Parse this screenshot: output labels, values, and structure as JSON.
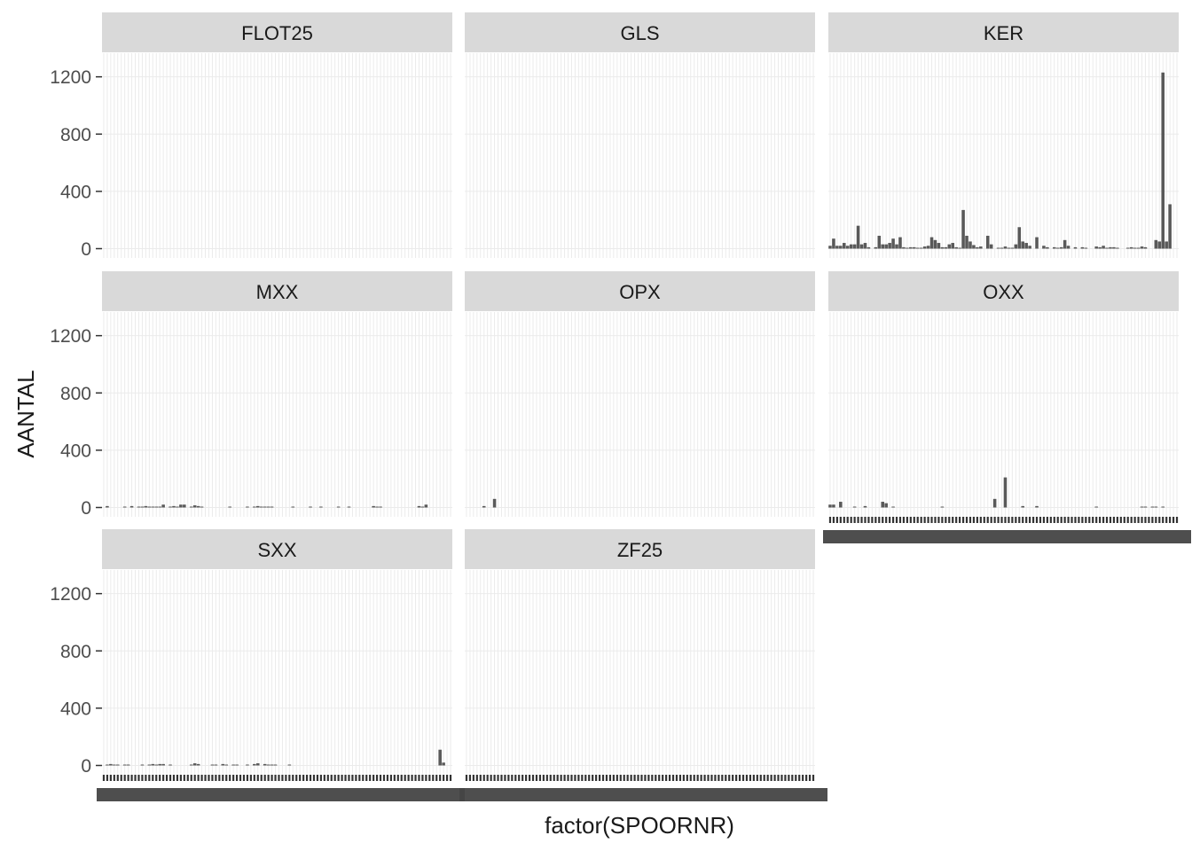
{
  "chart_data": {
    "type": "bar",
    "facet_by": "category",
    "xlabel": "factor(SPOORNR)",
    "ylabel": "AANTAL",
    "ylim": [
      0,
      1300
    ],
    "yticks": [
      0,
      400,
      800,
      1200
    ],
    "n_categories": 100,
    "grid": true,
    "colors": {
      "bar": "#595959",
      "strip": "#d9d9d9",
      "grid": "#ebebeb",
      "text": "#4d4d4d",
      "title": "#1a1a1a"
    },
    "panels": [
      {
        "label": "FLOT25",
        "values": [
          0,
          0,
          0,
          0,
          0,
          0,
          0,
          0,
          0,
          0,
          0,
          0,
          0,
          0,
          0,
          0,
          0,
          0,
          0,
          0,
          0,
          0,
          0,
          0,
          0,
          0,
          0,
          0,
          0,
          0,
          0,
          0,
          0,
          0,
          0,
          0,
          0,
          0,
          0,
          0,
          0,
          0,
          0,
          0,
          0,
          0,
          0,
          0,
          0,
          0,
          0,
          0,
          0,
          0,
          0,
          0,
          0,
          0,
          0,
          0,
          0,
          0,
          0,
          0,
          0,
          0,
          0,
          0,
          0,
          0,
          0,
          0,
          0,
          0,
          0,
          0,
          0,
          0,
          0,
          0,
          0,
          0,
          0,
          0,
          0,
          0,
          0,
          0,
          0,
          0,
          0,
          0,
          0,
          0,
          0,
          0,
          0,
          0,
          0,
          0
        ]
      },
      {
        "label": "GLS",
        "values": [
          0,
          0,
          0,
          0,
          0,
          0,
          0,
          0,
          0,
          0,
          0,
          0,
          0,
          0,
          0,
          0,
          0,
          0,
          0,
          0,
          0,
          0,
          0,
          0,
          0,
          0,
          0,
          0,
          0,
          0,
          0,
          0,
          0,
          0,
          0,
          0,
          0,
          0,
          0,
          0,
          0,
          0,
          0,
          0,
          0,
          0,
          0,
          0,
          0,
          0,
          0,
          0,
          0,
          0,
          0,
          0,
          0,
          0,
          0,
          0,
          0,
          0,
          0,
          0,
          0,
          0,
          0,
          0,
          0,
          0,
          0,
          0,
          0,
          0,
          0,
          0,
          0,
          0,
          0,
          0,
          0,
          0,
          0,
          0,
          0,
          0,
          0,
          0,
          0,
          0,
          0,
          0,
          0,
          0,
          0,
          0,
          0,
          0,
          0,
          0
        ]
      },
      {
        "label": "KER",
        "values": [
          20,
          70,
          20,
          20,
          40,
          20,
          30,
          30,
          160,
          30,
          40,
          10,
          0,
          10,
          90,
          30,
          30,
          40,
          70,
          30,
          80,
          10,
          5,
          10,
          10,
          5,
          5,
          15,
          20,
          80,
          60,
          40,
          10,
          10,
          30,
          40,
          10,
          5,
          270,
          90,
          50,
          25,
          10,
          15,
          0,
          90,
          30,
          0,
          5,
          5,
          15,
          5,
          5,
          30,
          150,
          50,
          40,
          20,
          0,
          80,
          0,
          20,
          10,
          0,
          10,
          5,
          10,
          60,
          20,
          0,
          10,
          0,
          10,
          5,
          0,
          0,
          15,
          10,
          20,
          5,
          10,
          10,
          5,
          0,
          0,
          5,
          10,
          5,
          5,
          15,
          10,
          0,
          0,
          60,
          50,
          1230,
          50,
          310,
          0,
          0
        ]
      },
      {
        "label": "MXX",
        "values": [
          0,
          10,
          0,
          0,
          0,
          0,
          5,
          0,
          10,
          0,
          5,
          5,
          10,
          5,
          5,
          5,
          5,
          20,
          0,
          5,
          10,
          5,
          20,
          20,
          0,
          5,
          15,
          10,
          5,
          0,
          0,
          0,
          0,
          0,
          0,
          0,
          5,
          0,
          0,
          0,
          0,
          5,
          0,
          5,
          10,
          5,
          5,
          5,
          5,
          0,
          0,
          0,
          0,
          0,
          5,
          0,
          0,
          0,
          0,
          5,
          0,
          0,
          5,
          0,
          0,
          0,
          0,
          5,
          0,
          0,
          5,
          0,
          0,
          0,
          0,
          0,
          0,
          10,
          5,
          5,
          0,
          0,
          0,
          0,
          0,
          0,
          0,
          0,
          0,
          0,
          10,
          5,
          20,
          0,
          0,
          0,
          0,
          0,
          0,
          0
        ]
      },
      {
        "label": "OPX",
        "values": [
          0,
          0,
          0,
          0,
          0,
          10,
          0,
          0,
          60,
          0,
          0,
          0,
          0,
          0,
          0,
          0,
          0,
          0,
          0,
          0,
          0,
          0,
          0,
          0,
          0,
          0,
          0,
          0,
          0,
          0,
          0,
          0,
          0,
          0,
          0,
          0,
          0,
          0,
          0,
          0,
          0,
          0,
          0,
          0,
          0,
          0,
          0,
          0,
          0,
          0,
          0,
          0,
          0,
          0,
          0,
          0,
          0,
          0,
          0,
          0,
          0,
          0,
          0,
          0,
          0,
          0,
          0,
          0,
          0,
          0,
          0,
          0,
          0,
          0,
          0,
          0,
          0,
          0,
          0,
          0,
          0,
          0,
          0,
          0,
          0,
          0,
          0,
          0,
          0,
          0,
          0,
          0,
          0,
          0,
          0,
          0,
          0,
          0,
          0,
          0
        ]
      },
      {
        "label": "OXX",
        "values": [
          20,
          20,
          0,
          40,
          0,
          0,
          0,
          5,
          0,
          0,
          10,
          0,
          0,
          0,
          0,
          40,
          30,
          0,
          5,
          0,
          0,
          0,
          0,
          0,
          0,
          0,
          0,
          0,
          0,
          0,
          0,
          0,
          5,
          0,
          0,
          0,
          0,
          0,
          0,
          0,
          0,
          0,
          0,
          0,
          0,
          0,
          0,
          60,
          0,
          0,
          210,
          0,
          0,
          0,
          0,
          10,
          0,
          0,
          0,
          10,
          0,
          0,
          0,
          0,
          0,
          0,
          0,
          0,
          0,
          0,
          0,
          0,
          0,
          0,
          0,
          0,
          5,
          0,
          0,
          0,
          0,
          0,
          0,
          0,
          0,
          0,
          0,
          0,
          0,
          5,
          5,
          0,
          5,
          5,
          0,
          5,
          0,
          0,
          0,
          0
        ]
      },
      {
        "label": "SXX",
        "values": [
          0,
          5,
          10,
          5,
          5,
          0,
          5,
          5,
          0,
          0,
          0,
          5,
          0,
          5,
          10,
          5,
          10,
          10,
          0,
          5,
          0,
          0,
          0,
          0,
          0,
          5,
          15,
          10,
          0,
          0,
          0,
          5,
          5,
          0,
          10,
          5,
          0,
          5,
          5,
          0,
          0,
          5,
          0,
          10,
          15,
          0,
          10,
          5,
          5,
          5,
          0,
          0,
          0,
          5,
          0,
          0,
          0,
          0,
          0,
          0,
          0,
          0,
          0,
          0,
          0,
          0,
          0,
          0,
          0,
          0,
          0,
          0,
          0,
          0,
          0,
          0,
          0,
          0,
          0,
          0,
          0,
          0,
          0,
          0,
          0,
          0,
          0,
          0,
          0,
          0,
          0,
          0,
          0,
          0,
          0,
          0,
          110,
          20,
          0,
          0
        ]
      },
      {
        "label": "ZF25",
        "values": [
          0,
          0,
          0,
          0,
          0,
          0,
          0,
          0,
          0,
          0,
          0,
          0,
          0,
          0,
          0,
          0,
          0,
          0,
          0,
          0,
          0,
          0,
          0,
          0,
          0,
          0,
          0,
          0,
          0,
          0,
          0,
          0,
          0,
          0,
          0,
          0,
          0,
          0,
          0,
          0,
          0,
          0,
          0,
          0,
          0,
          0,
          0,
          0,
          0,
          0,
          0,
          0,
          0,
          0,
          0,
          0,
          0,
          0,
          0,
          0,
          0,
          0,
          0,
          0,
          0,
          0,
          0,
          0,
          0,
          0,
          0,
          0,
          0,
          0,
          0,
          0,
          0,
          0,
          0,
          0,
          0,
          0,
          0,
          0,
          0,
          0,
          0,
          0,
          0,
          0,
          0,
          0,
          0,
          0,
          0,
          0,
          0,
          0,
          0,
          0
        ]
      }
    ]
  }
}
